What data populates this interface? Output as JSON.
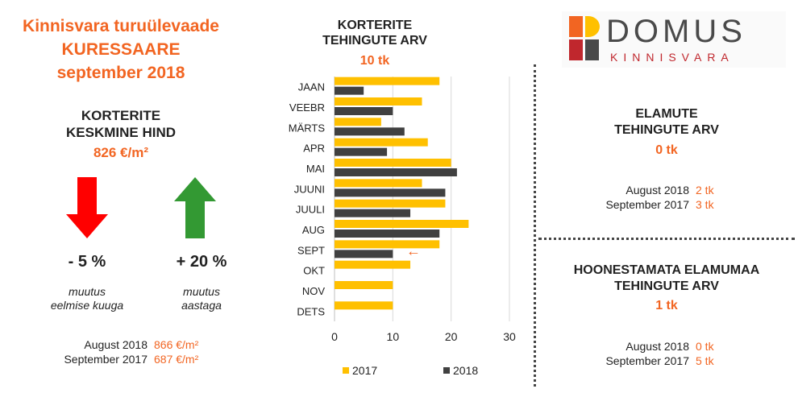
{
  "header": {
    "line1": "Kinnisvara turuülevaade",
    "line2": "KURESSAARE",
    "line3": "september 2018"
  },
  "avg_price": {
    "title_line1": "KORTERITE",
    "title_line2": "KESKMINE HIND",
    "value": "826 €/m²",
    "down": {
      "pct": "- 5 %",
      "note_line1": "muutus",
      "note_line2": "eelmise kuuga",
      "color": "#ff0000"
    },
    "up": {
      "pct": "+ 20 %",
      "note_line1": "muutus",
      "note_line2": "aastaga",
      "color": "#339933"
    },
    "compare": [
      {
        "label": "August 2018",
        "value": "866 €/m²"
      },
      {
        "label": "September 2017",
        "value": "687 €/m²"
      }
    ]
  },
  "apartments_chart": {
    "title_line1": "KORTERITE",
    "title_line2": "TEHINGUTE ARV",
    "value": "10 tk"
  },
  "chart_data": {
    "type": "bar",
    "orientation": "horizontal",
    "categories": [
      "JAAN",
      "VEEBR",
      "MÄRTS",
      "APR",
      "MAI",
      "JUUNI",
      "JUULI",
      "AUG",
      "SEPT",
      "OKT",
      "NOV",
      "DETS"
    ],
    "series": [
      {
        "name": "2017",
        "color": "#ffc000",
        "values": [
          18,
          15,
          8,
          16,
          20,
          15,
          19,
          23,
          18,
          13,
          10,
          10
        ]
      },
      {
        "name": "2018",
        "color": "#404040",
        "values": [
          5,
          10,
          12,
          9,
          21,
          19,
          13,
          18,
          10,
          null,
          null,
          null
        ]
      }
    ],
    "xlim": [
      0,
      30
    ],
    "xticks": [
      "0",
      "10",
      "20",
      "30"
    ],
    "grid": true,
    "legend": "bottom",
    "annotation": {
      "category": "SEPT",
      "symbol": "←",
      "color": "#f26522"
    }
  },
  "houses": {
    "title_line1": "ELAMUTE",
    "title_line2": "TEHINGUTE ARV",
    "value": "0 tk",
    "compare": [
      {
        "label": "August 2018",
        "value": "2 tk"
      },
      {
        "label": "September 2017",
        "value": "3 tk"
      }
    ]
  },
  "land": {
    "title_line1": "HOONESTAMATA ELAMUMAA",
    "title_line2": "TEHINGUTE ARV",
    "value": "1 tk",
    "compare": [
      {
        "label": "August 2018",
        "value": "0 tk"
      },
      {
        "label": "September 2017",
        "value": "5 tk"
      }
    ]
  },
  "logo": {
    "word": "DOMUS",
    "sub": "KINNISVARA",
    "colors": [
      "#f26522",
      "#ffc000",
      "#c0272d",
      "#4a4a4a"
    ]
  }
}
